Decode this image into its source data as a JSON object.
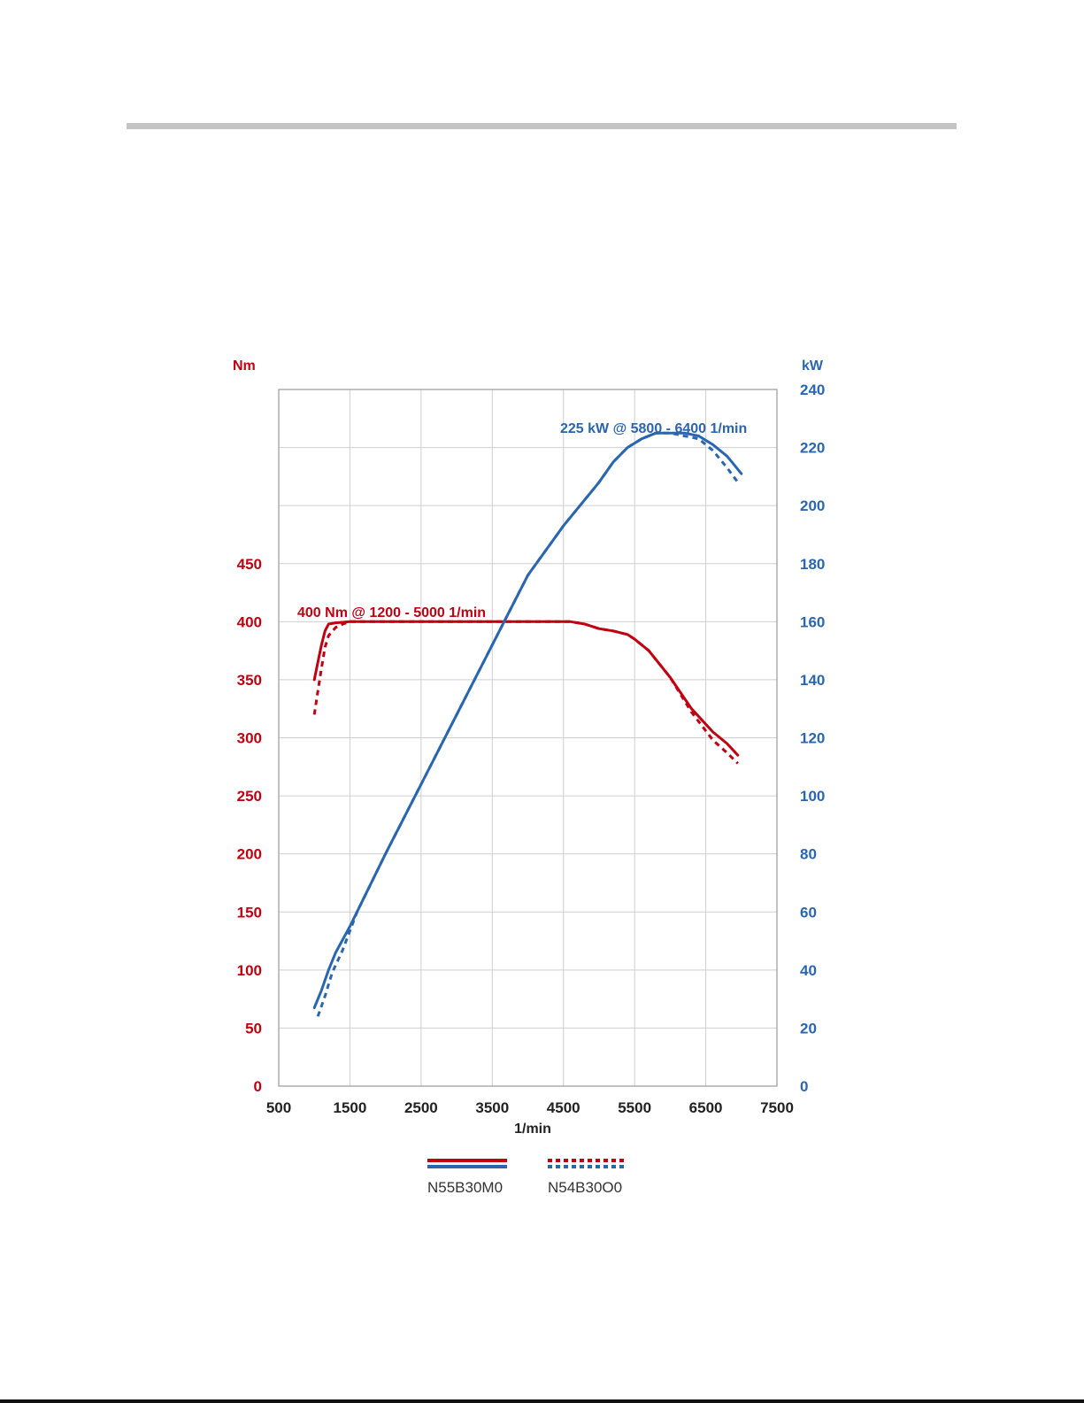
{
  "colors": {
    "torque": "#c00010",
    "power": "#2a66b0",
    "grid": "#cfcfcf",
    "frame": "#9a9a9a"
  },
  "chart_data": {
    "type": "line",
    "x_label": "1/min",
    "x_ticks": [
      500,
      1500,
      2500,
      3500,
      4500,
      5500,
      6500,
      7500
    ],
    "xlim": [
      500,
      7500
    ],
    "y_left": {
      "label": "Nm",
      "ticks": [
        0,
        50,
        100,
        150,
        200,
        250,
        300,
        350,
        400,
        450
      ],
      "lim": [
        0,
        600
      ]
    },
    "y_right": {
      "label": "kW",
      "ticks": [
        0,
        20,
        40,
        60,
        80,
        100,
        120,
        140,
        160,
        180,
        200,
        220,
        240
      ],
      "lim": [
        0,
        240
      ]
    },
    "grid": true,
    "annotations": {
      "torque": "400 Nm @ 1200 - 5000 1/min",
      "power": "225 kW @ 5800 - 6400 1/min"
    },
    "legend": {
      "placement": "bottom",
      "entries": [
        "N55B30M0",
        "N54B30O0"
      ]
    },
    "series": [
      {
        "name": "N55B30M0",
        "quantity": "torque",
        "axis": "left",
        "style": "solid",
        "x": [
          1000,
          1050,
          1100,
          1150,
          1200,
          1300,
          1500,
          2000,
          3000,
          4000,
          4600,
          4800,
          5000,
          5200,
          5400,
          5500,
          5700,
          6000,
          6300,
          6600,
          6800,
          6950
        ],
        "y": [
          350,
          365,
          380,
          392,
          398,
          399,
          400,
          400,
          400,
          400,
          400,
          398,
          394,
          392,
          389,
          385,
          375,
          352,
          325,
          305,
          295,
          285
        ]
      },
      {
        "name": "N54B30O0",
        "quantity": "torque",
        "axis": "left",
        "style": "dashed",
        "x": [
          1000,
          1050,
          1100,
          1150,
          1200,
          1300,
          1400,
          1500,
          2000,
          3000,
          4000,
          4600,
          4800,
          5000,
          5200,
          5400,
          5500,
          5700,
          6000,
          6300,
          6600,
          6800,
          6950
        ],
        "y": [
          320,
          340,
          360,
          378,
          388,
          395,
          398,
          400,
          400,
          400,
          400,
          400,
          398,
          394,
          392,
          389,
          385,
          375,
          352,
          322,
          298,
          287,
          278
        ]
      },
      {
        "name": "N55B30M0",
        "quantity": "power",
        "axis": "right",
        "style": "solid",
        "x": [
          1000,
          1100,
          1200,
          1300,
          1500,
          2000,
          2500,
          3000,
          3500,
          4000,
          4500,
          5000,
          5200,
          5400,
          5600,
          5800,
          6000,
          6200,
          6400,
          6600,
          6800,
          7000
        ],
        "y": [
          27,
          33,
          40,
          46,
          55,
          80,
          104,
          128,
          152,
          176,
          193,
          208,
          215,
          220,
          223,
          225,
          225,
          225,
          224,
          221,
          217,
          211
        ]
      },
      {
        "name": "N54B30O0",
        "quantity": "power",
        "axis": "right",
        "style": "dashed",
        "x": [
          1050,
          1150,
          1250,
          1400,
          1600,
          2000,
          2500,
          3000,
          3500,
          4000,
          4500,
          5000,
          5200,
          5400,
          5600,
          5800,
          6000,
          6200,
          6400,
          6600,
          6800,
          6950
        ],
        "y": [
          24,
          31,
          39,
          47,
          60,
          80,
          104,
          128,
          152,
          176,
          193,
          208,
          215,
          220,
          223,
          225,
          225,
          224,
          223,
          219,
          213,
          208
        ]
      }
    ]
  }
}
